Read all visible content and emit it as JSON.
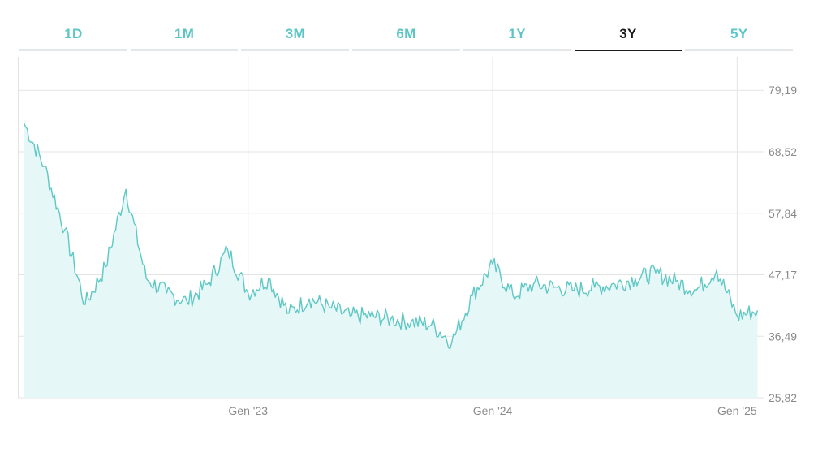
{
  "tabs": [
    {
      "label": "1D",
      "active": false
    },
    {
      "label": "1M",
      "active": false
    },
    {
      "label": "3M",
      "active": false
    },
    {
      "label": "6M",
      "active": false
    },
    {
      "label": "1Y",
      "active": false
    },
    {
      "label": "3Y",
      "active": true
    },
    {
      "label": "5Y",
      "active": false
    }
  ],
  "colors": {
    "accent": "#5cc6c6",
    "line": "#5ec8c4",
    "fill": "#e6f7f7",
    "grid": "#e3e3e3",
    "active_tab": "#1b1b1b"
  },
  "chart_data": {
    "type": "area",
    "title": "",
    "xlabel": "",
    "ylabel": "",
    "ylim": [
      25.82,
      85.0
    ],
    "y_ticks": [
      "79,19",
      "68,52",
      "57,84",
      "47,17",
      "36,49",
      "25,82"
    ],
    "y_tick_values": [
      79.19,
      68.52,
      57.84,
      47.17,
      36.49,
      25.82
    ],
    "x_ticks": [
      "Gen '23",
      "Gen '24",
      "Gen '25"
    ],
    "x_tick_values": [
      "2023-01",
      "2024-01",
      "2025-01"
    ],
    "grid": true,
    "series": [
      {
        "x": [
          "2022-02",
          "2022-03",
          "2022-04",
          "2022-05",
          "2022-06",
          "2022-07",
          "2022-08",
          "2022-09",
          "2022-10",
          "2022-11",
          "2022-12",
          "2023-01",
          "2023-02",
          "2023-03",
          "2023-04",
          "2023-05",
          "2023-06",
          "2023-07",
          "2023-08",
          "2023-09",
          "2023-10",
          "2023-11",
          "2023-12",
          "2024-01",
          "2024-02",
          "2024-03",
          "2024-04",
          "2024-05",
          "2024-06",
          "2024-07",
          "2024-08",
          "2024-09",
          "2024-10",
          "2024-11",
          "2024-12",
          "2025-01",
          "2025-02"
        ],
        "values": [
          73.5,
          66.0,
          55.0,
          42.0,
          48.5,
          62.0,
          46.5,
          44.0,
          42.5,
          45.5,
          51.5,
          44.0,
          46.5,
          40.5,
          43.0,
          41.5,
          40.0,
          40.0,
          39.5,
          39.0,
          38.5,
          35.5,
          43.5,
          49.0,
          43.5,
          45.5,
          45.0,
          44.5,
          45.0,
          45.5,
          46.5,
          47.5,
          46.0,
          44.5,
          48.0,
          40.0,
          41.0
        ]
      }
    ]
  }
}
